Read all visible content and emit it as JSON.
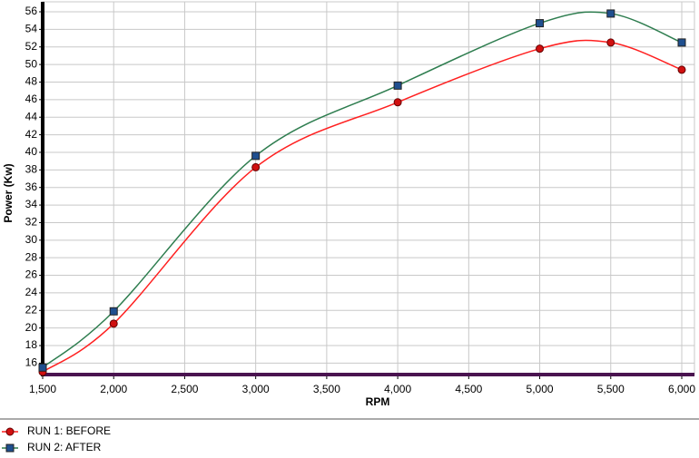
{
  "chart_data": {
    "type": "line",
    "x_label": "RPM",
    "y_label": "Power (Kw)",
    "x": [
      1500,
      2000,
      3000,
      4000,
      5000,
      5500,
      6000
    ],
    "series": [
      {
        "name": "RUN 1: BEFORE",
        "color": "#ff2020",
        "marker_color": "#d01010",
        "marker": "circle",
        "values": [
          15.0,
          20.5,
          38.3,
          45.7,
          51.8,
          52.5,
          49.4
        ]
      },
      {
        "name": "RUN 2: AFTER",
        "color": "#2e7d4f",
        "marker_color": "#1f4f8f",
        "marker": "square",
        "values": [
          15.5,
          21.9,
          39.6,
          47.6,
          54.7,
          55.8,
          52.5
        ]
      }
    ],
    "xlim": [
      1500,
      6000
    ],
    "xticks": [
      {
        "value": 1500,
        "label": "1,500"
      },
      {
        "value": 2000,
        "label": "2,000"
      },
      {
        "value": 2500,
        "label": "2,500"
      },
      {
        "value": 3000,
        "label": "3,000"
      },
      {
        "value": 3500,
        "label": "3,500"
      },
      {
        "value": 4000,
        "label": "4,000"
      },
      {
        "value": 4500,
        "label": "4,500"
      },
      {
        "value": 5000,
        "label": "5,000"
      },
      {
        "value": 5500,
        "label": "5,500"
      },
      {
        "value": 6000,
        "label": "6,000"
      }
    ],
    "ylim": [
      14.7,
      56
    ],
    "yticks": [
      16,
      18,
      20,
      22,
      24,
      26,
      28,
      30,
      32,
      34,
      36,
      38,
      40,
      42,
      44,
      46,
      48,
      50,
      52,
      54,
      56
    ],
    "grid": true
  }
}
